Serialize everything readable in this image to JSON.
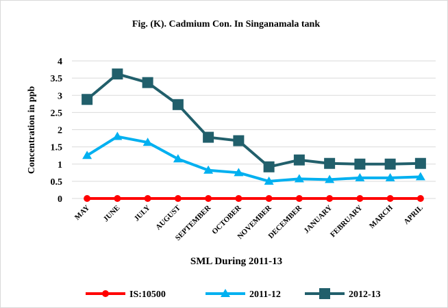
{
  "chart_data": {
    "type": "line",
    "title": "Fig. (K). Cadmium Con. In Singanamala tank",
    "x_label": "SML During 2011-13",
    "y_label": "Concentration in ppb",
    "categories": [
      "MAY",
      "JUNE",
      "JULY",
      "AUGUST",
      "SEPTEMBER",
      "OCTOBER",
      "NOVEMBER",
      "DECEMBER",
      "JANUARY",
      "FEBRUARY",
      "MARCH",
      "APRIL"
    ],
    "series": [
      {
        "name": "IS:10500",
        "color": "#ff0000",
        "marker": "circle",
        "values": [
          0,
          0,
          0,
          0,
          0,
          0,
          0,
          0,
          0,
          0,
          0,
          0
        ]
      },
      {
        "name": "2011-12",
        "color": "#00b0f0",
        "marker": "triangle",
        "values": [
          1.25,
          1.8,
          1.63,
          1.15,
          0.82,
          0.75,
          0.5,
          0.57,
          0.55,
          0.6,
          0.6,
          0.63
        ]
      },
      {
        "name": "2012-13",
        "color": "#215f6b",
        "marker": "square",
        "values": [
          2.88,
          3.62,
          3.37,
          2.73,
          1.78,
          1.68,
          0.92,
          1.12,
          1.02,
          1.0,
          1.0,
          1.02
        ]
      }
    ],
    "ylim": [
      0,
      4
    ],
    "yticks": [
      0,
      0.5,
      1,
      1.5,
      2,
      2.5,
      3,
      3.5,
      4
    ],
    "grid": true,
    "legend": "bottom"
  }
}
